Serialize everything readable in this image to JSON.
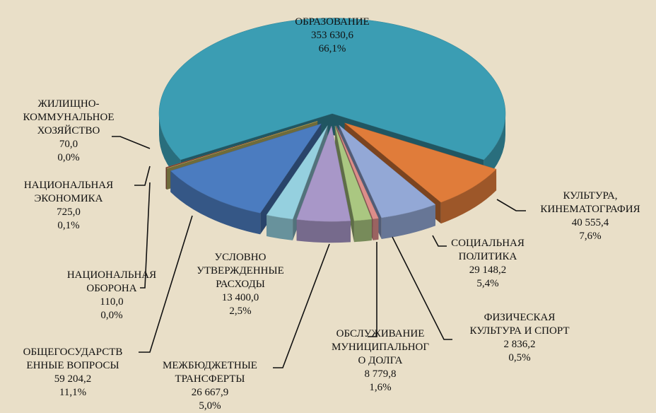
{
  "chart_data": {
    "type": "pie3d",
    "categories": [
      "ОБРАЗОВАНИЕ",
      "КУЛЬТУРА,\nКИНЕМАТОГРАФИЯ",
      "СОЦИАЛЬНАЯ\nПОЛИТИКА",
      "ФИЗИЧЕСКАЯ\nКУЛЬТУРА И СПОРТ",
      "ОБСЛУЖИВАНИЕ\nМУНИЦИПАЛЬНОГ\nО ДОЛГА",
      "МЕЖБЮДЖЕТНЫЕ\nТРАНСФЕРТЫ",
      "УСЛОВНО\nУТВЕРЖДЕННЫЕ\nРАСХОДЫ",
      "ОБЩЕГОСУДАРСТВ\nЕННЫЕ ВОПРОСЫ",
      "НАЦИОНАЛЬНАЯ\nОБОРОНА",
      "НАЦИОНАЛЬНАЯ\nЭКОНОМИКА",
      "ЖИЛИЩНО-\nКОММУНАЛЬНОЕ\nХОЗЯЙСТВО"
    ],
    "values": [
      353630.6,
      40555.4,
      29148.2,
      2836.2,
      8779.8,
      26667.9,
      13400.0,
      59204.2,
      110.0,
      725.0,
      70.0
    ],
    "value_labels": [
      "353 630,6",
      "40 555,4",
      "29 148,2",
      "2 836,2",
      "8 779,8",
      "26 667,9",
      "13 400,0",
      "59 204,2",
      "110,0",
      "725,0",
      "70,0"
    ],
    "percents": [
      66.1,
      7.6,
      5.4,
      0.5,
      1.6,
      5.0,
      2.5,
      11.1,
      0.0,
      0.1,
      0.0
    ],
    "percent_labels": [
      "66,1%",
      "7,6%",
      "5,4%",
      "0,5%",
      "1,6%",
      "5,0%",
      "2,5%",
      "11,1%",
      "0,0%",
      "0,1%",
      "0,0%"
    ],
    "colors": [
      "#3b9db3",
      "#e07c3a",
      "#93a8d6",
      "#dc8e8a",
      "#aac781",
      "#a897c8",
      "#95d0df",
      "#4b7cc0",
      "#c9c36a",
      "#8a3434",
      "#bcc36a"
    ]
  }
}
